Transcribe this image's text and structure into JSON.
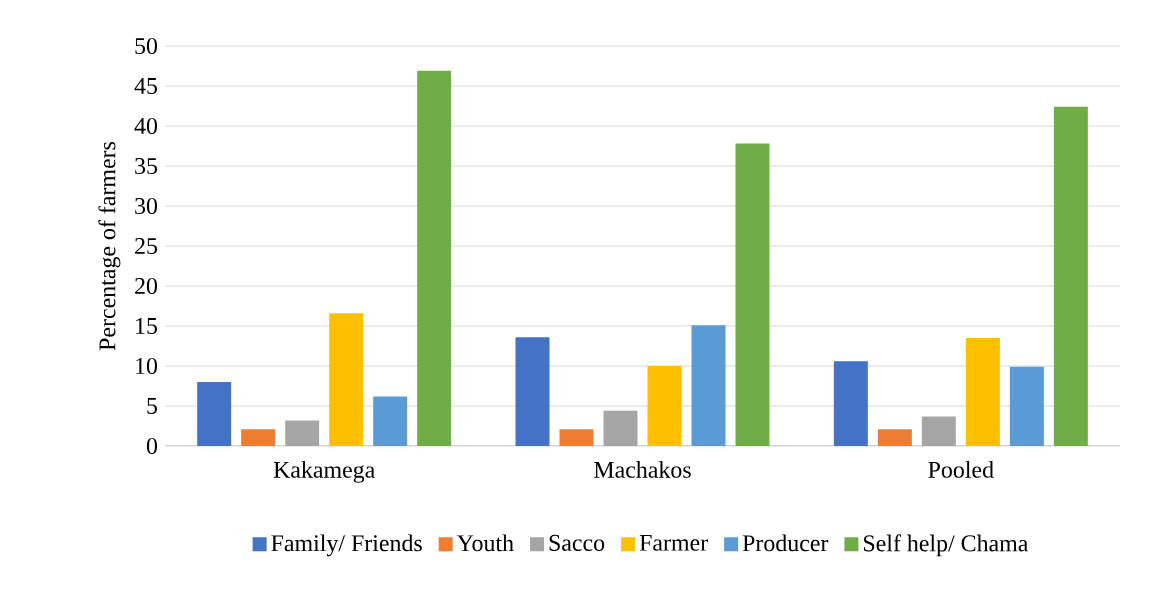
{
  "chart_data": {
    "type": "bar",
    "ylabel": "Percentage of farmers",
    "categories": [
      "Kakamega",
      "Machakos",
      "Pooled"
    ],
    "series": [
      {
        "name": "Family/ Friends",
        "color": "#4472c4",
        "values": [
          8.0,
          13.6,
          10.6
        ]
      },
      {
        "name": "Youth",
        "color": "#ed7d31",
        "values": [
          2.1,
          2.1,
          2.1
        ]
      },
      {
        "name": "Sacco",
        "color": "#a5a5a5",
        "values": [
          3.2,
          4.4,
          3.7
        ]
      },
      {
        "name": "Farmer",
        "color": "#ffc000",
        "values": [
          16.6,
          10.0,
          13.5
        ]
      },
      {
        "name": "Producer",
        "color": "#5b9bd5",
        "values": [
          6.2,
          15.1,
          9.9
        ]
      },
      {
        "name": "Self help/ Chama",
        "color": "#70ad47",
        "values": [
          46.9,
          37.8,
          42.4
        ]
      }
    ],
    "ylim": [
      0,
      50
    ],
    "yticks": [
      0,
      5,
      10,
      15,
      20,
      25,
      30,
      35,
      40,
      45,
      50
    ],
    "grid": "y",
    "legend": "bottom"
  }
}
